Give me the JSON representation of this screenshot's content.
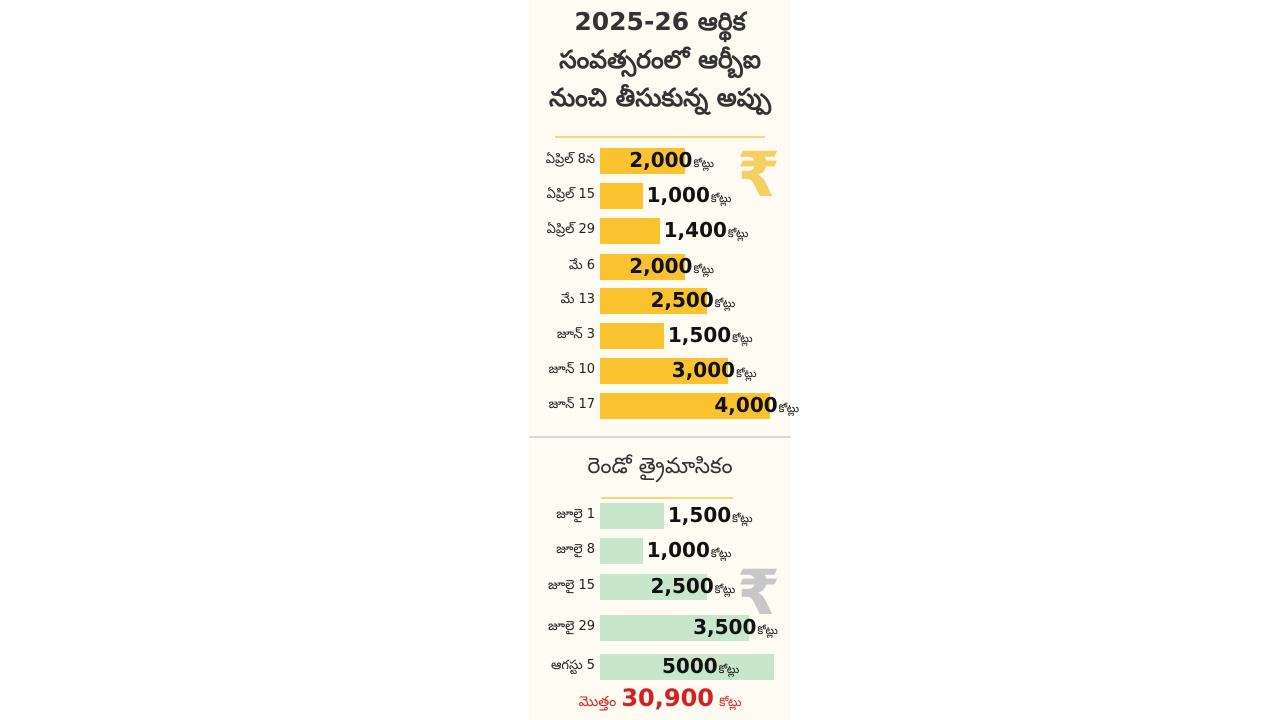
{
  "title_lines": [
    "2025-26 ఆర్థిక",
    "సంవత్సరంలో ఆర్బీఐ",
    "నుంచి తీసుకున్న అప్పు"
  ],
  "currency_icon": "rupee-icon",
  "unit_label": "కోట్లు",
  "colors": {
    "q1_bar": "#f9c22e",
    "q2_bar": "#c8e6cc",
    "rule_gold": "#f3d77a",
    "total_text": "#d42020",
    "rupee_gold": "#f5d060",
    "rupee_gray": "#c7c7c7"
  },
  "section2_title": "రెండో త్రైమాసికం",
  "chart_data": [
    {
      "type": "bar",
      "orientation": "horizontal",
      "title": "2025-26 ఆర్థిక సంవత్సరంలో ఆర్బీఐ నుంచి తీసుకున్న అప్పు",
      "unit": "కోట్లు",
      "categories": [
        "ఏప్రిల్ 8న",
        "ఏప్రిల్ 15",
        "ఏప్రిల్ 29",
        "మే 6",
        "మే 13",
        "జూన్ 3",
        "జూన్ 10",
        "జూన్ 17"
      ],
      "values": [
        2000,
        1000,
        1400,
        2000,
        2500,
        1500,
        3000,
        4000
      ],
      "value_labels": [
        "2,000",
        "1,000",
        "1,400",
        "2,000",
        "2,500",
        "1,500",
        "3,000",
        "4,000"
      ],
      "xlim": [
        0,
        4000
      ],
      "color": "#f9c22e"
    },
    {
      "type": "bar",
      "orientation": "horizontal",
      "title": "రెండో త్రైమాసికం",
      "unit": "కోట్లు",
      "categories": [
        "జూలై 1",
        "జూలై 8",
        "జూలై 15",
        "జూలై 29",
        "ఆగస్టు 5"
      ],
      "values": [
        1500,
        1000,
        2500,
        3500,
        5000
      ],
      "value_labels": [
        "1,500",
        "1,000",
        "2,500",
        "3,500",
        "5000"
      ],
      "xlim": [
        0,
        5000
      ],
      "color": "#c8e6cc"
    }
  ],
  "total": {
    "label": "మొత్తం",
    "value": "30,900",
    "unit": "కోట్లు"
  }
}
